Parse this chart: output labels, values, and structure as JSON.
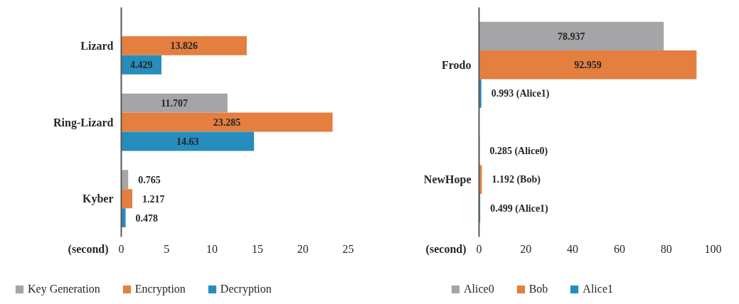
{
  "chart_data": [
    {
      "type": "bar",
      "orientation": "horizontal",
      "xlabel": "(second)",
      "categories": [
        "Lizard",
        "Ring-Lizard",
        "Kyber"
      ],
      "xlim": [
        0,
        25
      ],
      "xticks": [
        0,
        5,
        10,
        15,
        20,
        25
      ],
      "grid": false,
      "legend": "bottom",
      "data_labels": true,
      "series": [
        {
          "name": "Key Generation",
          "color": "#a5a5a8",
          "values": [
            null,
            11.707,
            0.765
          ]
        },
        {
          "name": "Encryption",
          "color": "#e47f3f",
          "values": [
            13.826,
            23.285,
            1.217
          ]
        },
        {
          "name": "Decryption",
          "color": "#268dbd",
          "values": [
            4.429,
            14.63,
            0.478
          ]
        }
      ]
    },
    {
      "type": "bar",
      "orientation": "horizontal",
      "xlabel": "(second)",
      "categories": [
        "Frodo",
        "NewHope"
      ],
      "xlim": [
        0,
        100
      ],
      "xticks": [
        0,
        20,
        40,
        60,
        80,
        100
      ],
      "grid": false,
      "legend": "bottom",
      "series": [
        {
          "name": "Alice0",
          "color": "#a5a5a8",
          "values": [
            78.937,
            0.285
          ],
          "value_labels": [
            "78.937",
            "0.285 (Alice0)"
          ]
        },
        {
          "name": "Bob",
          "color": "#e47f3f",
          "values": [
            92.959,
            1.192
          ],
          "value_labels": [
            "92.959",
            "1.192 (Bob)"
          ]
        },
        {
          "name": "Alice1",
          "color": "#268dbd",
          "values": [
            0.993,
            0.499
          ],
          "value_labels": [
            "0.993 (Alice1)",
            "0.499 (Alice1)"
          ]
        }
      ]
    }
  ]
}
